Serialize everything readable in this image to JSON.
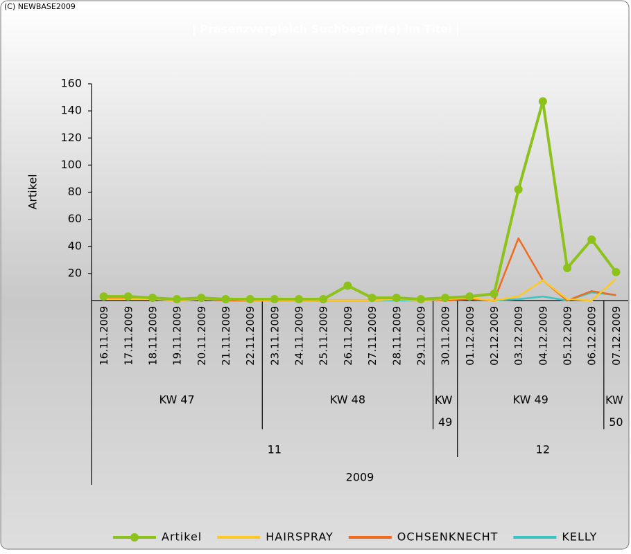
{
  "chart_data": {
    "type": "line",
    "copyright": "(C) NEWBASE2009",
    "title": "| Präsenzvergleich Suchbegriff(e) im Titel |",
    "ylabel": "Artikel",
    "categories": [
      "16.11.2009",
      "17.11.2009",
      "18.11.2009",
      "19.11.2009",
      "20.11.2009",
      "21.11.2009",
      "22.11.2009",
      "23.11.2009",
      "24.11.2009",
      "25.11.2009",
      "26.11.2009",
      "27.11.2009",
      "28.11.2009",
      "29.11.2009",
      "30.11.2009",
      "01.12.2009",
      "02.12.2009",
      "03.12.2009",
      "04.12.2009",
      "05.12.2009",
      "06.12.2009",
      "07.12.2009"
    ],
    "groups": [
      [
        {
          "label": "KW 47",
          "count": 7
        },
        {
          "label": "KW 48",
          "count": 7
        },
        {
          "label": "KW 49",
          "count": 1
        },
        {
          "label": "KW 49",
          "count": 6
        },
        {
          "label": "KW 50",
          "count": 1
        }
      ],
      [
        {
          "label": "11",
          "count": 15
        },
        {
          "label": "12",
          "count": 7
        }
      ],
      [
        {
          "label": "2009",
          "count": 22
        }
      ]
    ],
    "series": [
      {
        "name": "Artikel",
        "color": "#8cc21a",
        "markers": true,
        "values": [
          3,
          3,
          2,
          1,
          2,
          1,
          1,
          1,
          1,
          1,
          11,
          2,
          2,
          1,
          2,
          3,
          5,
          82,
          147,
          24,
          45,
          21
        ]
      },
      {
        "name": "HAIRSPRAY",
        "color": "#ffc825",
        "values": [
          1,
          1,
          1,
          0,
          1,
          1,
          0,
          0,
          0,
          0,
          0,
          0,
          1,
          0,
          1,
          2,
          0,
          3,
          15,
          1,
          0,
          16
        ]
      },
      {
        "name": "OCHSENKNECHT",
        "color": "#f26a1b",
        "values": [
          2,
          2,
          1,
          0,
          1,
          0,
          0,
          0,
          0,
          0,
          0,
          0,
          1,
          1,
          0,
          1,
          0,
          46,
          15,
          0,
          7,
          4
        ]
      },
      {
        "name": "KELLY",
        "color": "#3cc3c3",
        "values": [
          1,
          1,
          1,
          1,
          1,
          0,
          0,
          0,
          0,
          0,
          0,
          0,
          0,
          0,
          1,
          1,
          0,
          1,
          3,
          0,
          6,
          4
        ]
      }
    ],
    "ylim": [
      0,
      160
    ],
    "yticks": [
      20,
      40,
      60,
      80,
      100,
      120,
      140,
      160
    ]
  }
}
